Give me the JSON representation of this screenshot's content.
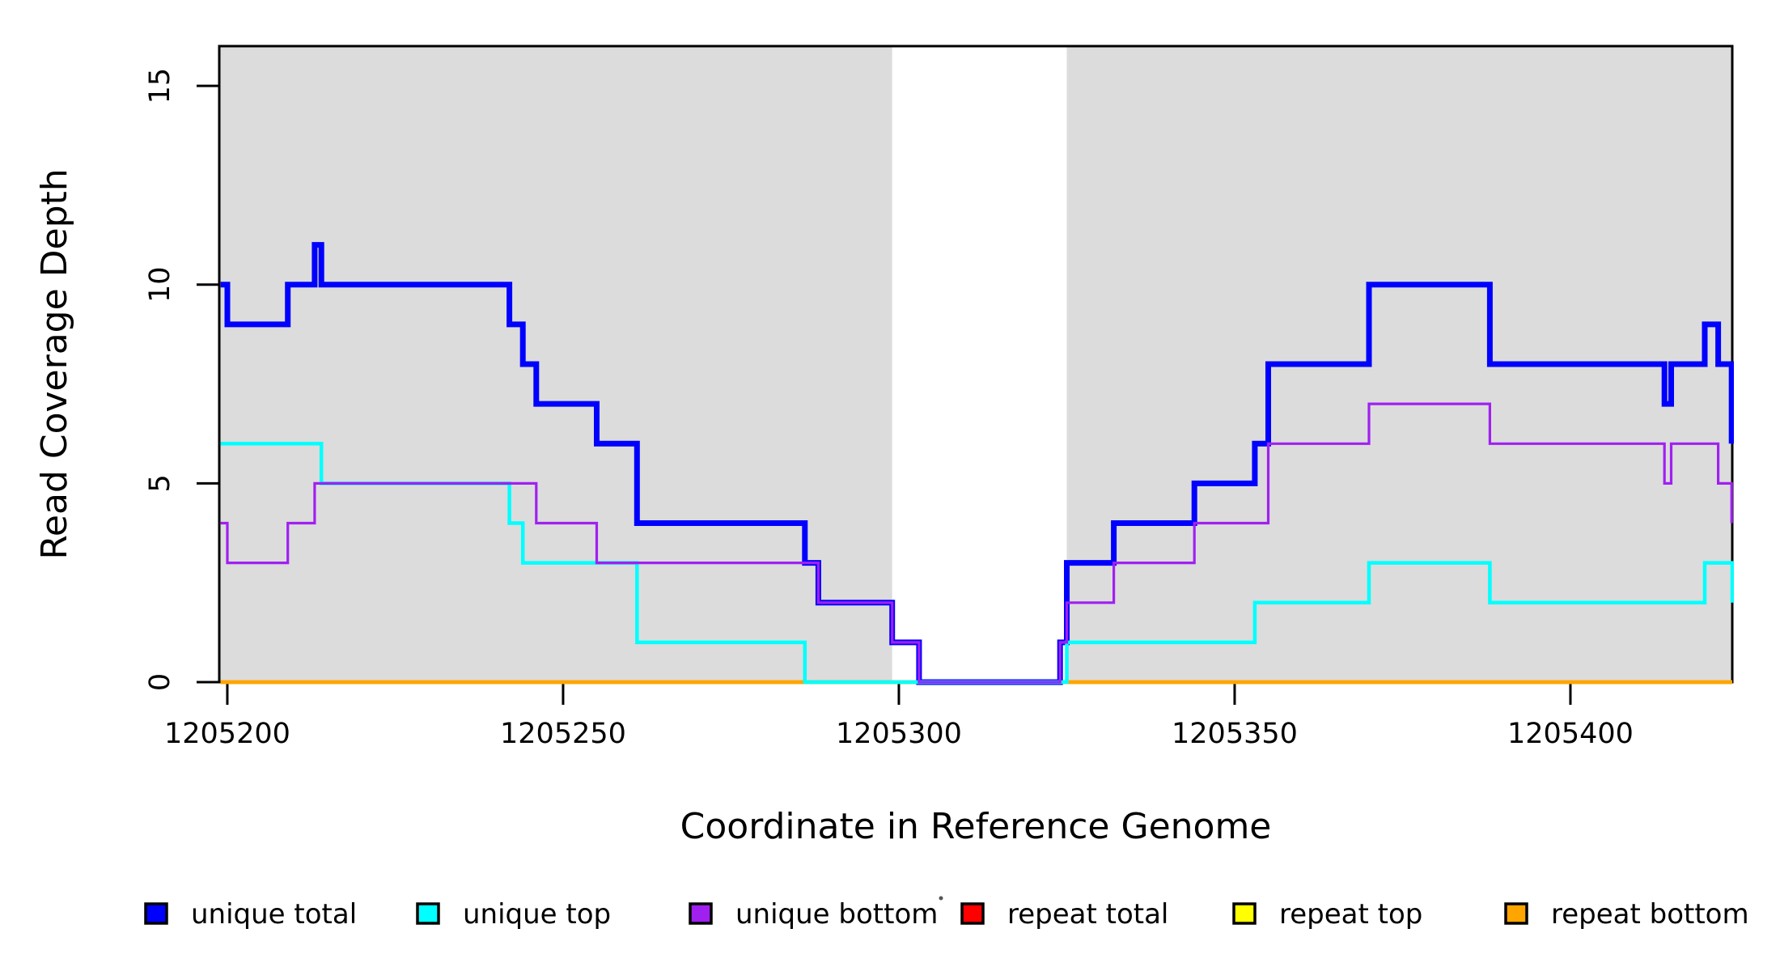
{
  "figure": {
    "x_axis": {
      "label": "Coordinate in Reference Genome",
      "ticks": [
        1205200,
        1205250,
        1205300,
        1205350,
        1205400
      ]
    },
    "y_axis": {
      "label": "Read Coverage Depth",
      "ticks": [
        0,
        5,
        10,
        15
      ]
    },
    "legend": [
      {
        "label": "unique total",
        "color": "#0000FF"
      },
      {
        "label": "unique top",
        "color": "#00FFFF"
      },
      {
        "label": "unique bottom",
        "color": "#A020F0"
      },
      {
        "label": "repeat total",
        "color": "#FF0000"
      },
      {
        "label": "repeat top",
        "color": "#FFFF00"
      },
      {
        "label": "repeat bottom",
        "color": "#FFA500"
      }
    ]
  },
  "chart_data": {
    "type": "line",
    "subtype": "step-after",
    "title": "",
    "xlabel": "Coordinate in Reference Genome",
    "ylabel": "Read Coverage Depth",
    "x_range_visible": [
      1205198.8,
      1205424.1
    ],
    "ylim": [
      0,
      16
    ],
    "x_ticks": [
      1205200,
      1205250,
      1205300,
      1205350,
      1205400
    ],
    "y_ticks": [
      0,
      5,
      10,
      15
    ],
    "grid": false,
    "legend_position": "bottom",
    "shaded_regions": [
      {
        "name": "covered-segment-left",
        "x_start": 1205198.8,
        "x_end": 1205299.0,
        "color": "#DCDCDC"
      },
      {
        "name": "covered-segment-right",
        "x_start": 1205325.0,
        "x_end": 1205424.1,
        "color": "#DCDCDC"
      }
    ],
    "series": [
      {
        "name": "repeat total",
        "color": "#FF0000",
        "width": 4.5,
        "points": [
          [
            1205199,
            0
          ],
          [
            1205424.1,
            0
          ]
        ]
      },
      {
        "name": "repeat top",
        "color": "#FFFF00",
        "width": 4.5,
        "points": [
          [
            1205199,
            0
          ],
          [
            1205424.1,
            0
          ]
        ]
      },
      {
        "name": "repeat bottom",
        "color": "#FFA500",
        "width": 4.5,
        "points": [
          [
            1205199,
            0
          ],
          [
            1205424.1,
            0
          ]
        ]
      },
      {
        "name": "unique total",
        "color": "#0000FF",
        "width": 7,
        "points": [
          [
            1205199,
            10
          ],
          [
            1205200,
            9
          ],
          [
            1205209,
            10
          ],
          [
            1205213,
            11
          ],
          [
            1205214,
            10
          ],
          [
            1205242,
            9
          ],
          [
            1205244,
            8
          ],
          [
            1205246,
            7
          ],
          [
            1205255,
            6
          ],
          [
            1205261,
            4
          ],
          [
            1205286,
            3
          ],
          [
            1205288,
            2
          ],
          [
            1205299,
            1
          ],
          [
            1205303,
            0
          ],
          [
            1205324,
            1
          ],
          [
            1205325,
            3
          ],
          [
            1205332,
            4
          ],
          [
            1205344,
            5
          ],
          [
            1205353,
            6
          ],
          [
            1205355,
            8
          ],
          [
            1205370,
            10
          ],
          [
            1205388,
            8
          ],
          [
            1205414,
            7
          ],
          [
            1205415,
            8
          ],
          [
            1205420,
            9
          ],
          [
            1205422,
            8
          ],
          [
            1205424,
            6
          ]
        ]
      },
      {
        "name": "unique top",
        "color": "#00FFFF",
        "width": 4.5,
        "points": [
          [
            1205199,
            6
          ],
          [
            1205214,
            5
          ],
          [
            1205242,
            4
          ],
          [
            1205244,
            3
          ],
          [
            1205261,
            1
          ],
          [
            1205286,
            0
          ],
          [
            1205325,
            1
          ],
          [
            1205353,
            2
          ],
          [
            1205370,
            3
          ],
          [
            1205388,
            2
          ],
          [
            1205420,
            3
          ],
          [
            1205424.1,
            2
          ]
        ]
      },
      {
        "name": "unique bottom",
        "color": "#A020F0",
        "width": 3.2,
        "points": [
          [
            1205199,
            4
          ],
          [
            1205200,
            3
          ],
          [
            1205209,
            4
          ],
          [
            1205213,
            5
          ],
          [
            1205246,
            4
          ],
          [
            1205255,
            3
          ],
          [
            1205288,
            2
          ],
          [
            1205299,
            1
          ],
          [
            1205303,
            0
          ],
          [
            1205324,
            1
          ],
          [
            1205325,
            2
          ],
          [
            1205332,
            3
          ],
          [
            1205344,
            4
          ],
          [
            1205355,
            6
          ],
          [
            1205370,
            7
          ],
          [
            1205388,
            6
          ],
          [
            1205414,
            5
          ],
          [
            1205415,
            6
          ],
          [
            1205422,
            5
          ],
          [
            1205424,
            4
          ]
        ]
      }
    ]
  }
}
